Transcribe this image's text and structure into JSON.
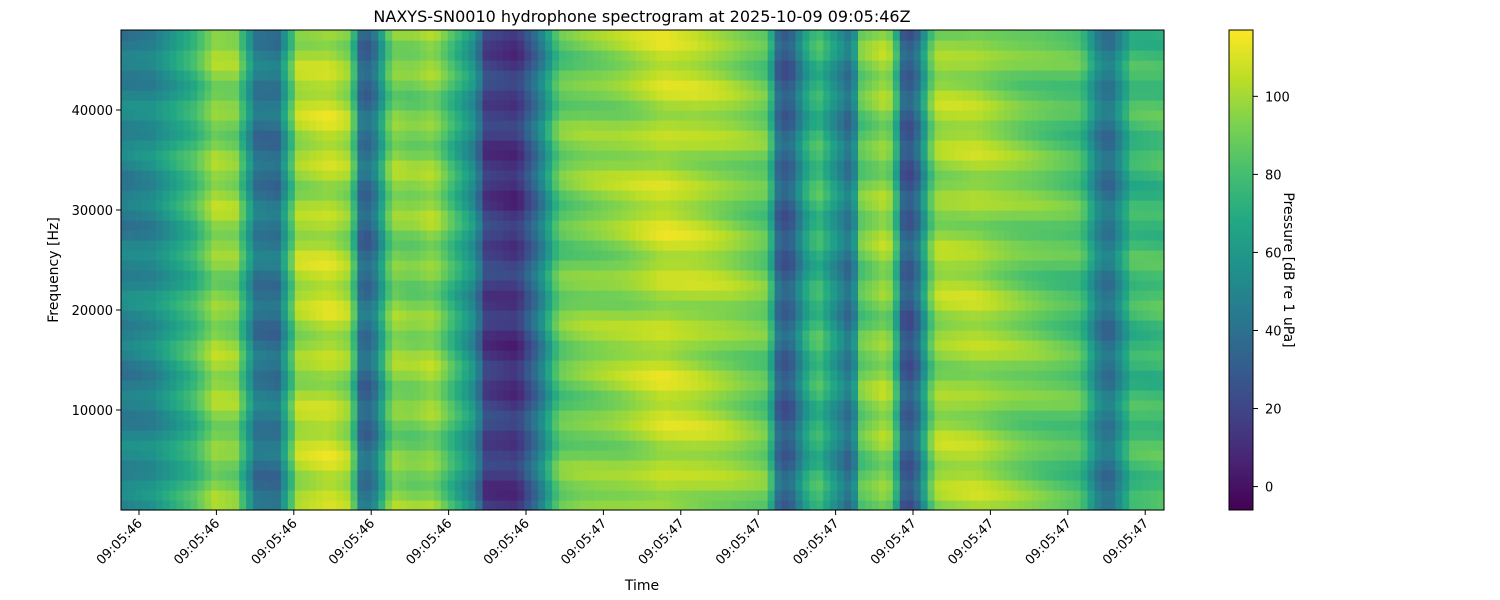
{
  "chart_data": {
    "type": "heatmap",
    "title": "NAXYS-SN0010 hydrophone spectrogram at 2025-10-09 09:05:46Z",
    "xlabel": "Time",
    "ylabel": "Frequency [Hz]",
    "colorbar_label": "Pressure [dB re 1 uPa]",
    "colormap": "viridis",
    "x_tick_labels": [
      "09:05:46",
      "09:05:46",
      "09:05:46",
      "09:05:46",
      "09:05:46",
      "09:05:46",
      "09:05:47",
      "09:05:47",
      "09:05:47",
      "09:05:47",
      "09:05:47",
      "09:05:47",
      "09:05:47",
      "09:05:47"
    ],
    "y_ticks": [
      10000,
      20000,
      30000,
      40000
    ],
    "ylim": [
      0,
      48000
    ],
    "colorbar_ticks": [
      0,
      20,
      40,
      60,
      80,
      100
    ],
    "clim": [
      -6,
      117
    ],
    "time_profile": {
      "x": [
        0.0,
        0.03,
        0.07,
        0.09,
        0.11,
        0.13,
        0.15,
        0.17,
        0.2,
        0.22,
        0.23,
        0.24,
        0.26,
        0.28,
        0.3,
        0.34,
        0.35,
        0.38,
        0.4,
        0.42,
        0.44,
        0.48,
        0.52,
        0.55,
        0.58,
        0.6,
        0.62,
        0.63,
        0.64,
        0.66,
        0.67,
        0.7,
        0.71,
        0.73,
        0.74,
        0.75,
        0.76,
        0.78,
        0.79,
        0.82,
        0.86,
        0.92,
        0.94,
        0.95,
        0.97,
        1.0
      ],
      "level_db": [
        50,
        55,
        80,
        100,
        97,
        45,
        43,
        103,
        108,
        100,
        42,
        38,
        98,
        95,
        100,
        55,
        20,
        15,
        45,
        90,
        95,
        100,
        108,
        105,
        100,
        95,
        90,
        40,
        30,
        75,
        80,
        40,
        90,
        100,
        95,
        35,
        30,
        100,
        102,
        103,
        95,
        85,
        45,
        45,
        80,
        82
      ]
    }
  }
}
